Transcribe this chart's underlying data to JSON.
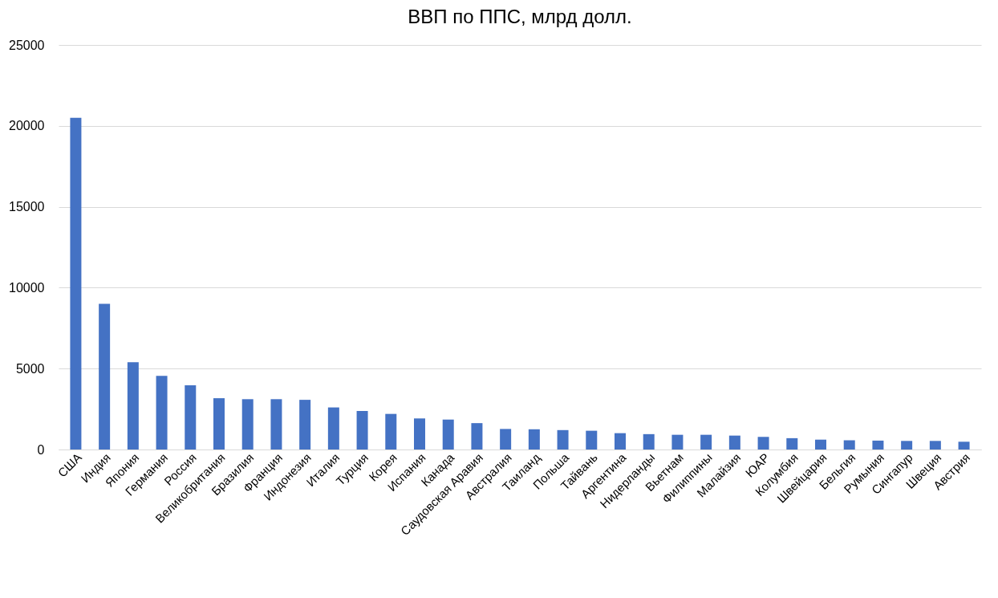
{
  "chart_data": {
    "type": "bar",
    "title": "ВВП по ППС, млрд долл.",
    "categories": [
      "США",
      "Индия",
      "Япония",
      "Германия",
      "Россия",
      "Великобритания",
      "Бразилия",
      "Франция",
      "Индонезия",
      "Италия",
      "Турция",
      "Корея",
      "Испания",
      "Канада",
      "Саудовская Аравия",
      "Австралия",
      "Таиланд",
      "Польша",
      "Тайвань",
      "Аргентина",
      "Нидерланды",
      "Вьетнам",
      "Филиппины",
      "Малайзия",
      "ЮАР",
      "Колумбия",
      "Швейцария",
      "Бельгия",
      "Румыния",
      "Сингапур",
      "Швеция",
      "Австрия"
    ],
    "values": [
      20500,
      9000,
      5400,
      4550,
      3970,
      3170,
      3110,
      3110,
      3070,
      2600,
      2380,
      2200,
      1920,
      1850,
      1630,
      1270,
      1250,
      1200,
      1160,
      1010,
      950,
      910,
      910,
      860,
      780,
      700,
      610,
      570,
      550,
      530,
      530,
      480
    ],
    "color": "#4472c4",
    "ylim": [
      0,
      25000
    ],
    "yticks": [
      0,
      5000,
      10000,
      15000,
      20000,
      25000
    ],
    "grid": "y"
  }
}
